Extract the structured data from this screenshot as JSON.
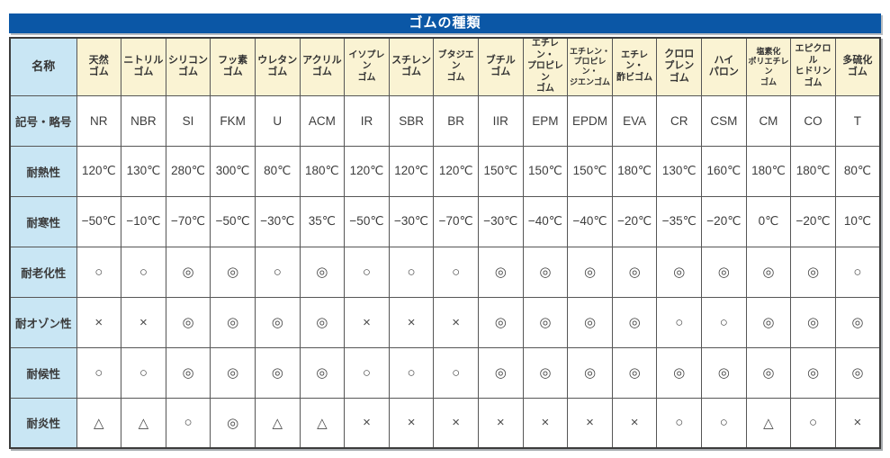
{
  "title": "ゴムの種類",
  "colors": {
    "title_bar_bg": "#0b57a6",
    "title_text": "#ffffff",
    "header_bg": "#faf3d3",
    "row_label_bg": "#c9e6f4",
    "grid_border": "#565656",
    "text": "#3a3a3a"
  },
  "table": {
    "corner_label": "名称",
    "columns": [
      {
        "name_lines": [
          "天然",
          "ゴム"
        ]
      },
      {
        "name_lines": [
          "ニトリル",
          "ゴム"
        ]
      },
      {
        "name_lines": [
          "シリコン",
          "ゴム"
        ]
      },
      {
        "name_lines": [
          "フッ素",
          "ゴム"
        ]
      },
      {
        "name_lines": [
          "ウレタン",
          "ゴム"
        ]
      },
      {
        "name_lines": [
          "アクリル",
          "ゴム"
        ]
      },
      {
        "name_lines": [
          "イソプレン",
          "ゴム"
        ]
      },
      {
        "name_lines": [
          "スチレン",
          "ゴム"
        ]
      },
      {
        "name_lines": [
          "ブタジエン",
          "ゴム"
        ]
      },
      {
        "name_lines": [
          "ブチル",
          "ゴム"
        ]
      },
      {
        "name_lines": [
          "エチレン・",
          "プロピレン",
          "ゴム"
        ]
      },
      {
        "name_lines": [
          "エチレン・",
          "プロピレン・",
          "ジエンゴム"
        ]
      },
      {
        "name_lines": [
          "エチレン・",
          "酢ビゴム"
        ]
      },
      {
        "name_lines": [
          "クロロ",
          "プレン",
          "ゴム"
        ]
      },
      {
        "name_lines": [
          "ハイ",
          "パロン"
        ]
      },
      {
        "name_lines": [
          "塩素化",
          "ポリエチレン",
          "ゴム"
        ]
      },
      {
        "name_lines": [
          "エピクロル",
          "ヒドリン",
          "ゴム"
        ]
      },
      {
        "name_lines": [
          "多硫化",
          "ゴム"
        ]
      }
    ],
    "rows": [
      {
        "label": "記号・略号",
        "kind": "val",
        "cells": [
          "NR",
          "NBR",
          "SI",
          "FKM",
          "U",
          "ACM",
          "IR",
          "SBR",
          "BR",
          "IIR",
          "EPM",
          "EPDM",
          "EVA",
          "CR",
          "CSM",
          "CM",
          "CO",
          "T"
        ]
      },
      {
        "label": "耐熱性",
        "kind": "val",
        "cells": [
          "120℃",
          "130℃",
          "280℃",
          "300℃",
          "80℃",
          "180℃",
          "120℃",
          "120℃",
          "120℃",
          "150℃",
          "150℃",
          "150℃",
          "180℃",
          "130℃",
          "160℃",
          "180℃",
          "180℃",
          "80℃"
        ]
      },
      {
        "label": "耐寒性",
        "kind": "val",
        "cells": [
          "−50℃",
          "−10℃",
          "−70℃",
          "−50℃",
          "−30℃",
          "35℃",
          "−50℃",
          "−30℃",
          "−70℃",
          "−30℃",
          "−40℃",
          "−40℃",
          "−20℃",
          "−35℃",
          "−20℃",
          "0℃",
          "−20℃",
          "10℃"
        ]
      },
      {
        "label": "耐老化性",
        "kind": "sym",
        "cells": [
          "○",
          "○",
          "◎",
          "◎",
          "○",
          "◎",
          "○",
          "○",
          "○",
          "◎",
          "◎",
          "◎",
          "◎",
          "◎",
          "◎",
          "◎",
          "◎",
          "○"
        ]
      },
      {
        "label": "耐オゾン性",
        "kind": "sym",
        "cells": [
          "×",
          "×",
          "◎",
          "◎",
          "◎",
          "◎",
          "×",
          "×",
          "×",
          "◎",
          "◎",
          "◎",
          "◎",
          "○",
          "○",
          "◎",
          "◎",
          "◎"
        ]
      },
      {
        "label": "耐候性",
        "kind": "sym",
        "cells": [
          "○",
          "○",
          "◎",
          "◎",
          "◎",
          "◎",
          "○",
          "○",
          "○",
          "◎",
          "◎",
          "◎",
          "◎",
          "◎",
          "◎",
          "◎",
          "◎",
          "◎"
        ]
      },
      {
        "label": "耐炎性",
        "kind": "sym",
        "cells": [
          "△",
          "△",
          "○",
          "◎",
          "△",
          "△",
          "×",
          "×",
          "×",
          "×",
          "×",
          "×",
          "×",
          "○",
          "○",
          "△",
          "○",
          "×"
        ]
      }
    ]
  }
}
